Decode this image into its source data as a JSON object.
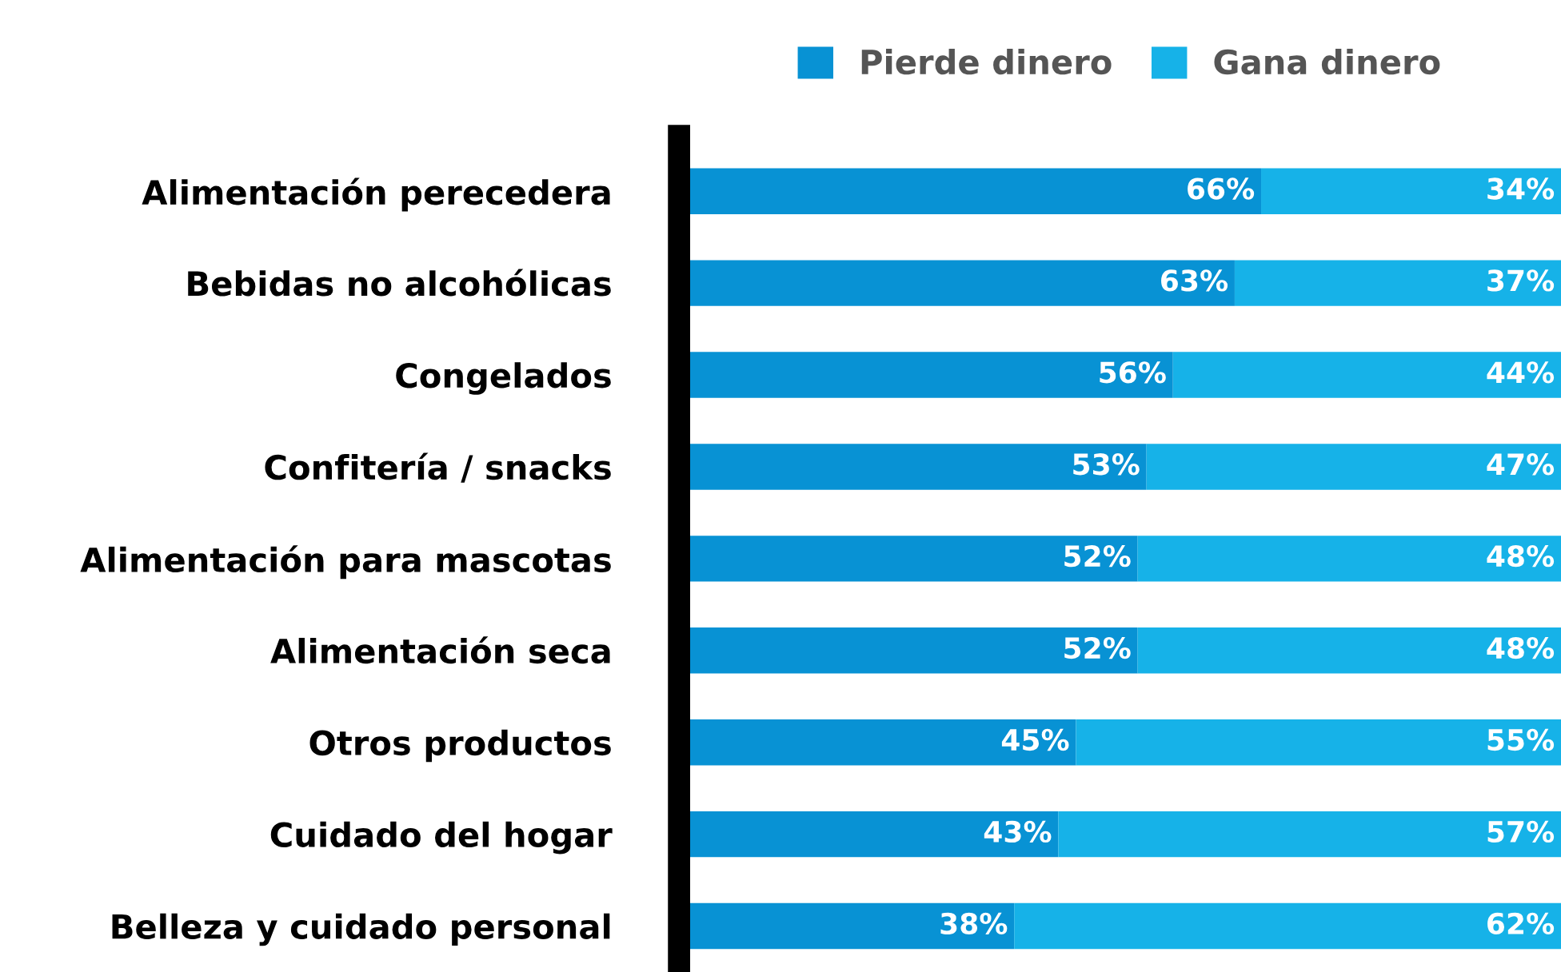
{
  "chart_data": {
    "type": "bar",
    "orientation": "horizontal",
    "stacked": true,
    "legend": "top",
    "grid": false,
    "categories": [
      "Alimentación perecedera",
      "Bebidas no alcohólicas",
      "Congelados",
      "Confitería / snacks",
      "Alimentación para mascotas",
      "Alimentación seca",
      "Otros productos",
      "Cuidado del hogar",
      "Belleza y cuidado personal"
    ],
    "series": [
      {
        "name": "Pierde dinero",
        "color": "#0892d4",
        "values": [
          66,
          63,
          56,
          53,
          52,
          52,
          45,
          43,
          38
        ],
        "value_labels": [
          "66%",
          "63%",
          "56%",
          "53%",
          "52%",
          "52%",
          "45%",
          "43%",
          "38%"
        ]
      },
      {
        "name": "Gana dinero",
        "color": "#16b2e8",
        "values": [
          34,
          37,
          44,
          47,
          48,
          48,
          55,
          57,
          62
        ],
        "value_labels": [
          "34%",
          "37%",
          "44%",
          "47%",
          "48%",
          "48%",
          "55%",
          "57%",
          "62%"
        ]
      }
    ]
  }
}
